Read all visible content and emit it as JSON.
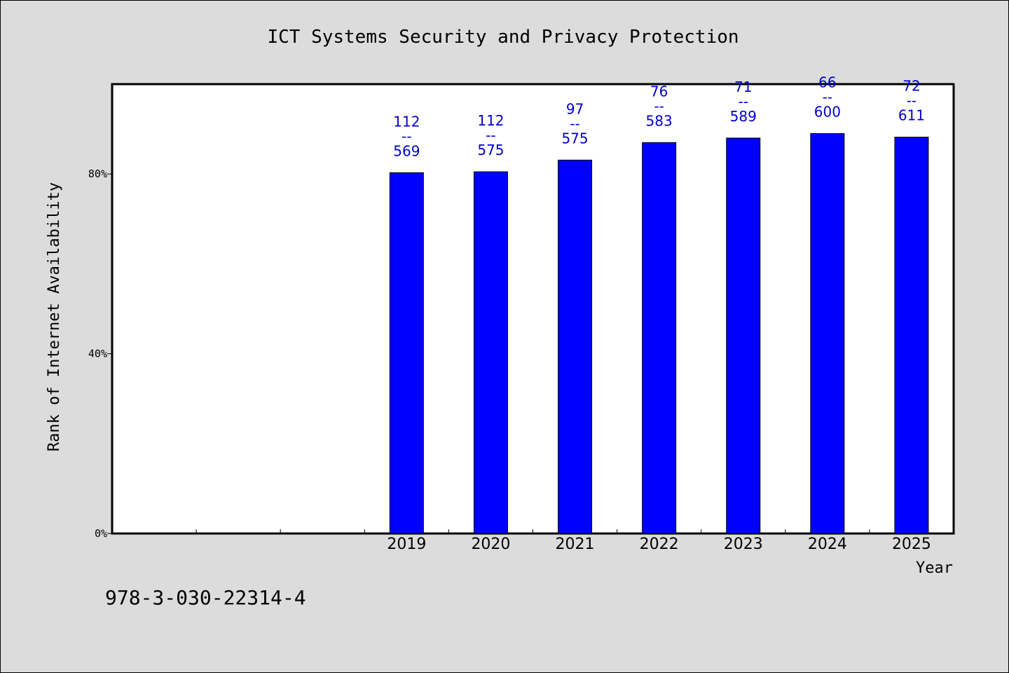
{
  "chart_data": {
    "type": "bar",
    "title": "ICT Systems Security and Privacy Protection",
    "xlabel": "Year",
    "ylabel": "Rank of Internet Availability",
    "y_ticks": [
      "0%",
      "40%",
      "80%"
    ],
    "ylim": [
      0,
      100
    ],
    "x_slots": [
      "",
      "",
      "",
      "2019",
      "2020",
      "2021",
      "2022",
      "2023",
      "2024",
      "2025"
    ],
    "categories": [
      "2019",
      "2020",
      "2021",
      "2022",
      "2023",
      "2024",
      "2025"
    ],
    "values": [
      80.3,
      80.5,
      83.1,
      87.0,
      88.0,
      89.0,
      88.2
    ],
    "data_labels": [
      [
        "112",
        "--",
        "569"
      ],
      [
        "112",
        "--",
        "575"
      ],
      [
        "97",
        "--",
        "575"
      ],
      [
        "76",
        "--",
        "583"
      ],
      [
        "71",
        "--",
        "589"
      ],
      [
        "66",
        "--",
        "600"
      ],
      [
        "72",
        "--",
        "611"
      ]
    ],
    "bar_color": "#0000ff",
    "label_color": "#0000cc",
    "grid": false,
    "legend": "none"
  },
  "footer": {
    "isbn": "978-3-030-22314-4"
  }
}
